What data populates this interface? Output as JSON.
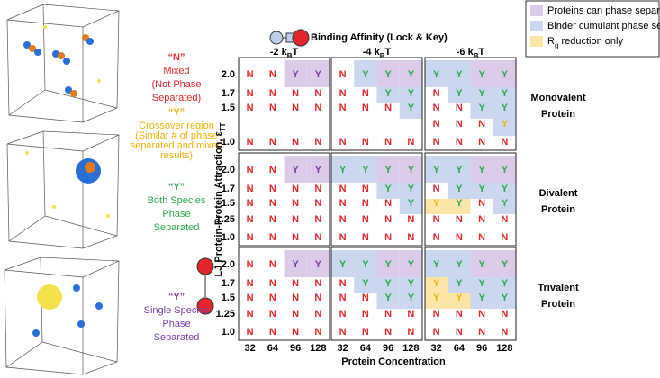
{
  "header": {
    "binding": "Binding Affinity (Lock & Key)"
  },
  "legend": [
    {
      "label": "Proteins can phase separate alone",
      "color": "#dccbe8"
    },
    {
      "label": "Binder cumulant phase separated",
      "color": "#cad7ee"
    },
    {
      "label": {
        "base": "R",
        "sub": "g",
        "tail": " reduction only"
      },
      "color": "#fbe6a8"
    }
  ],
  "states": [
    {
      "letter": "“N”",
      "lines": [
        "Mixed",
        "(Not Phase",
        "Separated)"
      ],
      "color": "#e3262d"
    },
    {
      "letter": "“Y”",
      "lines": [
        "Crossover region",
        "(Similar # of phase",
        "separated and mixed",
        "results)"
      ],
      "color": "#efb20c"
    },
    {
      "letter": "“Y”",
      "lines": [
        "Both Species",
        "Phase",
        "Separated"
      ],
      "color": "#2ea84f"
    },
    {
      "letter": "“Y”",
      "lines": [
        "Single Species",
        "Phase",
        "Separated"
      ],
      "color": "#7b3fa0"
    }
  ],
  "axis": {
    "y_label": {
      "base": "LJ Protein-Protein Attraction, ε",
      "sub": "TT"
    },
    "x_label": "Protein Concentration",
    "x_ticks": [
      "32",
      "64",
      "96",
      "128"
    ]
  },
  "columns": [
    {
      "base": "-2 k",
      "sub": "B",
      "tail": "T"
    },
    {
      "base": "-4 k",
      "sub": "B",
      "tail": "T"
    },
    {
      "base": "-6 k",
      "sub": "B",
      "tail": "T"
    }
  ],
  "rows": [
    {
      "label": [
        "Monovalent",
        "Protein"
      ],
      "y_ticks": [
        "2.0",
        "1.7",
        "1.5",
        null,
        "1.0"
      ],
      "panels": [
        {
          "cells": [
            [
              "N",
              "N",
              "Y",
              "Y"
            ],
            [
              "N",
              "N",
              "N",
              "N"
            ],
            [
              "N",
              "N",
              "N",
              "N"
            ],
            [
              null,
              null,
              null,
              null
            ],
            [
              "N",
              "N",
              "N",
              "N"
            ]
          ],
          "tones": [
            [
              0,
              0,
              3,
              3
            ],
            [
              0,
              0,
              0,
              0
            ],
            [
              0,
              0,
              0,
              0
            ],
            [
              null,
              null,
              null,
              null
            ],
            [
              0,
              0,
              0,
              0
            ]
          ],
          "shades": [
            [
              null,
              null,
              0,
              0
            ],
            [
              null,
              null,
              null,
              null
            ],
            [
              null,
              null,
              null,
              null
            ],
            [
              null,
              null,
              null,
              null
            ],
            [
              null,
              null,
              null,
              null
            ]
          ]
        },
        {
          "cells": [
            [
              "N",
              "Y",
              "Y",
              "Y"
            ],
            [
              "N",
              "N",
              "Y",
              "Y"
            ],
            [
              "N",
              "N",
              "N",
              "Y"
            ],
            [
              null,
              null,
              null,
              null
            ],
            [
              "N",
              "N",
              "N",
              "N"
            ]
          ],
          "tones": [
            [
              0,
              2,
              2,
              2
            ],
            [
              0,
              0,
              2,
              2
            ],
            [
              0,
              0,
              0,
              2
            ],
            [
              null,
              null,
              null,
              null
            ],
            [
              0,
              0,
              0,
              0
            ]
          ],
          "shades": [
            [
              null,
              1,
              0,
              0
            ],
            [
              null,
              null,
              1,
              1
            ],
            [
              null,
              null,
              null,
              1
            ],
            [
              null,
              null,
              null,
              null
            ],
            [
              null,
              null,
              null,
              null
            ]
          ]
        },
        {
          "cells": [
            [
              "Y",
              "Y",
              "Y",
              "Y"
            ],
            [
              "N",
              "Y",
              "Y",
              "Y"
            ],
            [
              "N",
              "N",
              "Y",
              "Y"
            ],
            [
              "N",
              "N",
              "N",
              "Y"
            ],
            [
              "N",
              "N",
              "N",
              "N"
            ]
          ],
          "tones": [
            [
              2,
              2,
              2,
              2
            ],
            [
              0,
              2,
              2,
              2
            ],
            [
              0,
              0,
              2,
              2
            ],
            [
              0,
              0,
              0,
              1
            ],
            [
              0,
              0,
              0,
              0
            ]
          ],
          "shades": [
            [
              1,
              1,
              0,
              0
            ],
            [
              null,
              1,
              1,
              1
            ],
            [
              null,
              null,
              1,
              1
            ],
            [
              null,
              null,
              null,
              1
            ],
            [
              null,
              null,
              null,
              null
            ]
          ]
        }
      ]
    },
    {
      "label": [
        "Divalent",
        "Protein"
      ],
      "y_ticks": [
        "2.0",
        "1.7",
        "1.5",
        "1.25",
        "1.0"
      ],
      "panels": [
        {
          "cells": [
            [
              "N",
              "N",
              "Y",
              "Y"
            ],
            [
              "N",
              "N",
              "N",
              "N"
            ],
            [
              "N",
              "N",
              "N",
              "N"
            ],
            [
              "N",
              "N",
              "N",
              "N"
            ],
            [
              "N",
              "N",
              "N",
              "N"
            ]
          ],
          "tones": [
            [
              0,
              0,
              3,
              3
            ],
            [
              0,
              0,
              0,
              0
            ],
            [
              0,
              0,
              0,
              0
            ],
            [
              0,
              0,
              0,
              0
            ],
            [
              0,
              0,
              0,
              0
            ]
          ],
          "shades": [
            [
              null,
              null,
              0,
              0
            ],
            [
              null,
              null,
              null,
              null
            ],
            [
              null,
              null,
              null,
              null
            ],
            [
              null,
              null,
              null,
              null
            ],
            [
              null,
              null,
              null,
              null
            ]
          ]
        },
        {
          "cells": [
            [
              "Y",
              "Y",
              "Y",
              "Y"
            ],
            [
              "N",
              "N",
              "Y",
              "Y"
            ],
            [
              "N",
              "N",
              "N",
              "Y"
            ],
            [
              "N",
              "N",
              "N",
              "N"
            ],
            [
              "N",
              "N",
              "N",
              "N"
            ]
          ],
          "tones": [
            [
              2,
              2,
              2,
              2
            ],
            [
              0,
              0,
              2,
              2
            ],
            [
              0,
              0,
              0,
              2
            ],
            [
              0,
              0,
              0,
              0
            ],
            [
              0,
              0,
              0,
              0
            ]
          ],
          "shades": [
            [
              1,
              1,
              0,
              0
            ],
            [
              null,
              null,
              1,
              1
            ],
            [
              null,
              null,
              null,
              1
            ],
            [
              null,
              null,
              null,
              null
            ],
            [
              null,
              null,
              null,
              null
            ]
          ]
        },
        {
          "cells": [
            [
              "Y",
              "Y",
              "Y",
              "Y"
            ],
            [
              "N",
              "Y",
              "Y",
              "Y"
            ],
            [
              "Y",
              "Y",
              "N",
              "Y"
            ],
            [
              "N",
              "N",
              "N",
              "N"
            ],
            [
              "N",
              "N",
              "N",
              "N"
            ]
          ],
          "tones": [
            [
              2,
              2,
              2,
              2
            ],
            [
              0,
              2,
              2,
              2
            ],
            [
              1,
              2,
              0,
              2
            ],
            [
              0,
              0,
              0,
              0
            ],
            [
              0,
              0,
              0,
              0
            ]
          ],
          "shades": [
            [
              1,
              1,
              0,
              0
            ],
            [
              null,
              1,
              1,
              1
            ],
            [
              2,
              2,
              null,
              1
            ],
            [
              null,
              null,
              null,
              null
            ],
            [
              null,
              null,
              null,
              null
            ]
          ]
        }
      ]
    },
    {
      "label": [
        "Trivalent",
        "Protein"
      ],
      "y_ticks": [
        "2.0",
        "1.7",
        "1.5",
        "1.25",
        "1.0"
      ],
      "panels": [
        {
          "cells": [
            [
              "N",
              "N",
              "Y",
              "Y"
            ],
            [
              "N",
              "N",
              "N",
              "N"
            ],
            [
              "N",
              "N",
              "N",
              "N"
            ],
            [
              "N",
              "N",
              "N",
              "N"
            ],
            [
              "N",
              "N",
              "N",
              "N"
            ]
          ],
          "tones": [
            [
              0,
              0,
              3,
              3
            ],
            [
              0,
              0,
              0,
              0
            ],
            [
              0,
              0,
              0,
              0
            ],
            [
              0,
              0,
              0,
              0
            ],
            [
              0,
              0,
              0,
              0
            ]
          ],
          "shades": [
            [
              null,
              null,
              0,
              0
            ],
            [
              null,
              null,
              null,
              null
            ],
            [
              null,
              null,
              null,
              null
            ],
            [
              null,
              null,
              null,
              null
            ],
            [
              null,
              null,
              null,
              null
            ]
          ]
        },
        {
          "cells": [
            [
              "Y",
              "Y",
              "Y",
              "Y"
            ],
            [
              "N",
              "Y",
              "Y",
              "Y"
            ],
            [
              "N",
              "N",
              "Y",
              "Y"
            ],
            [
              "N",
              "N",
              "N",
              "N"
            ],
            [
              "N",
              "N",
              "N",
              "N"
            ]
          ],
          "tones": [
            [
              2,
              2,
              2,
              2
            ],
            [
              0,
              2,
              2,
              2
            ],
            [
              0,
              0,
              2,
              2
            ],
            [
              0,
              0,
              0,
              0
            ],
            [
              0,
              0,
              0,
              0
            ]
          ],
          "shades": [
            [
              1,
              1,
              0,
              0
            ],
            [
              null,
              1,
              1,
              1
            ],
            [
              null,
              null,
              1,
              1
            ],
            [
              null,
              null,
              null,
              null
            ],
            [
              null,
              null,
              null,
              null
            ]
          ]
        },
        {
          "cells": [
            [
              "Y",
              "Y",
              "Y",
              "Y"
            ],
            [
              "Y",
              "Y",
              "Y",
              "Y"
            ],
            [
              "Y",
              "Y",
              "Y",
              "Y"
            ],
            [
              "N",
              "N",
              "N",
              "N"
            ],
            [
              "N",
              "N",
              "N",
              "N"
            ]
          ],
          "tones": [
            [
              2,
              2,
              2,
              2
            ],
            [
              1,
              2,
              2,
              2
            ],
            [
              1,
              1,
              2,
              2
            ],
            [
              0,
              0,
              0,
              0
            ],
            [
              0,
              0,
              0,
              0
            ]
          ],
          "shades": [
            [
              1,
              1,
              0,
              0
            ],
            [
              2,
              1,
              1,
              1
            ],
            [
              2,
              2,
              1,
              1
            ],
            [
              null,
              null,
              null,
              null
            ],
            [
              null,
              null,
              null,
              null
            ]
          ]
        }
      ]
    }
  ]
}
